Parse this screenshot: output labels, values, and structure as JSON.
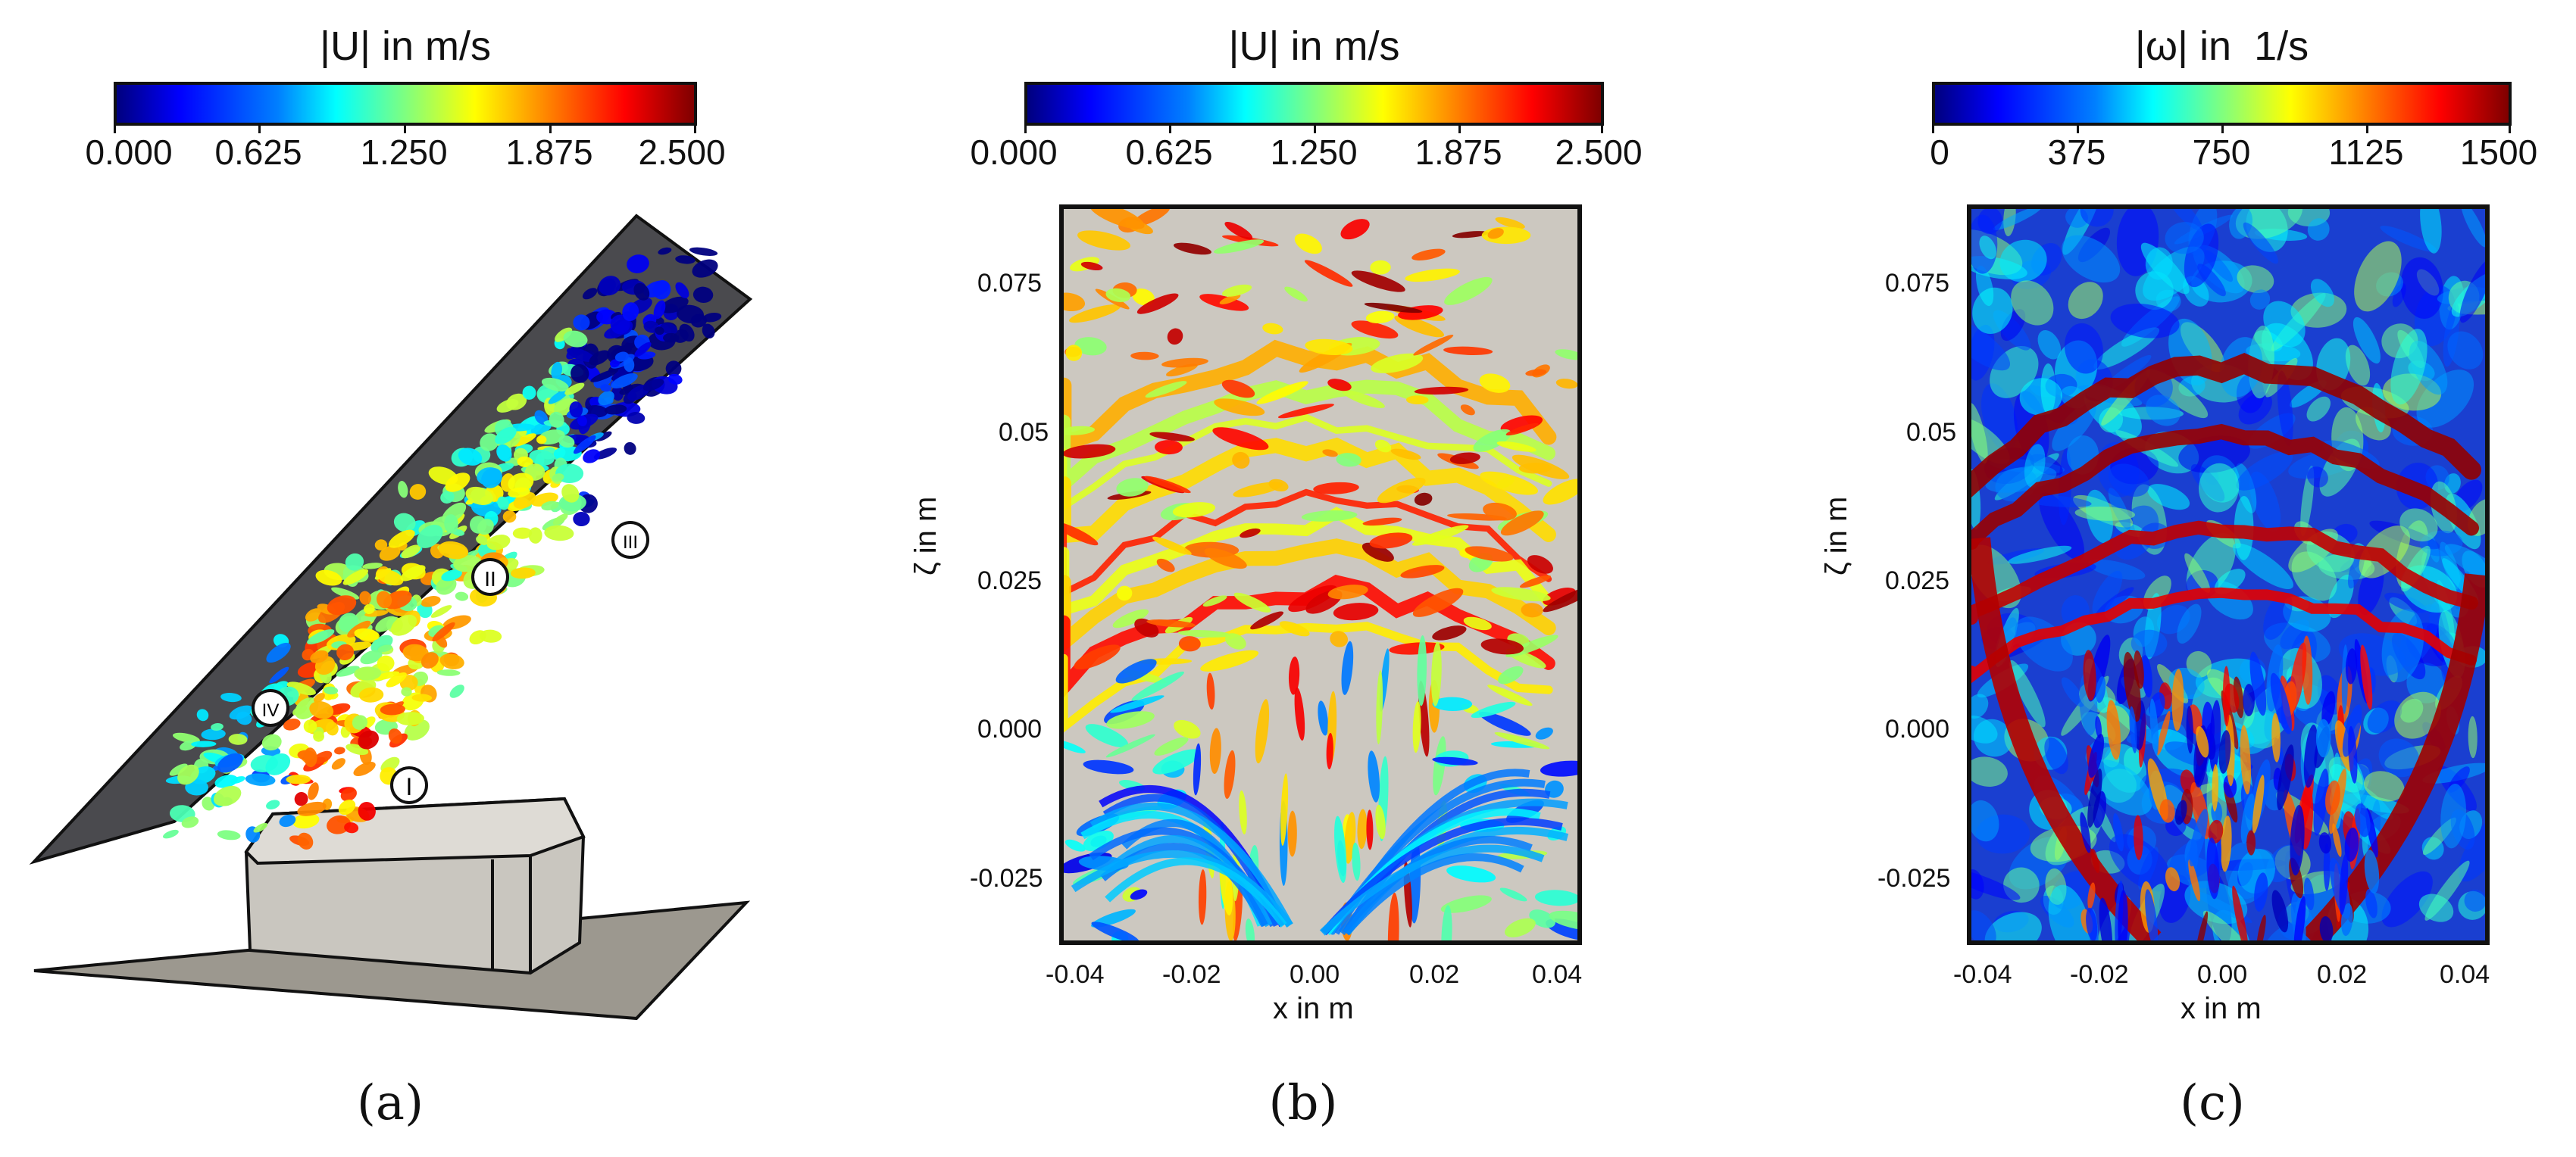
{
  "panels": {
    "a": {
      "colorbar": {
        "title": "|U| in m/s",
        "ticks": [
          "0.000",
          "0.625",
          "1.250",
          "1.875",
          "2.500"
        ]
      },
      "markers": [
        "I",
        "II",
        "III",
        "IV"
      ],
      "caption": "(a)"
    },
    "b": {
      "colorbar": {
        "title": "|U| in m/s",
        "ticks": [
          "0.000",
          "0.625",
          "1.250",
          "1.875",
          "2.500"
        ]
      },
      "xlabel": "x in m",
      "ylabel": "ζ in m",
      "xticks": [
        "-0.04",
        "-0.02",
        "0.00",
        "0.02",
        "0.04"
      ],
      "yticks": [
        "0.075",
        "0.05",
        "0.025",
        "0.000",
        "-0.025"
      ],
      "caption": "(b)"
    },
    "c": {
      "colorbar": {
        "title": "|ω| in  1/s",
        "ticks": [
          "0",
          "375",
          "750",
          "1125",
          "1500"
        ]
      },
      "xlabel": "x in m",
      "ylabel": "ζ in m",
      "xticks": [
        "-0.04",
        "-0.02",
        "0.00",
        "0.02",
        "0.04"
      ],
      "yticks": [
        "0.075",
        "0.05",
        "0.025",
        "0.000",
        "-0.025"
      ],
      "caption": "(c)"
    }
  },
  "colors": {
    "frame": "#111111",
    "background": "#ffffff",
    "slice_bg": "#ccc8c0",
    "deflector": "#4a4a4e",
    "floor": "#9c988f"
  }
}
